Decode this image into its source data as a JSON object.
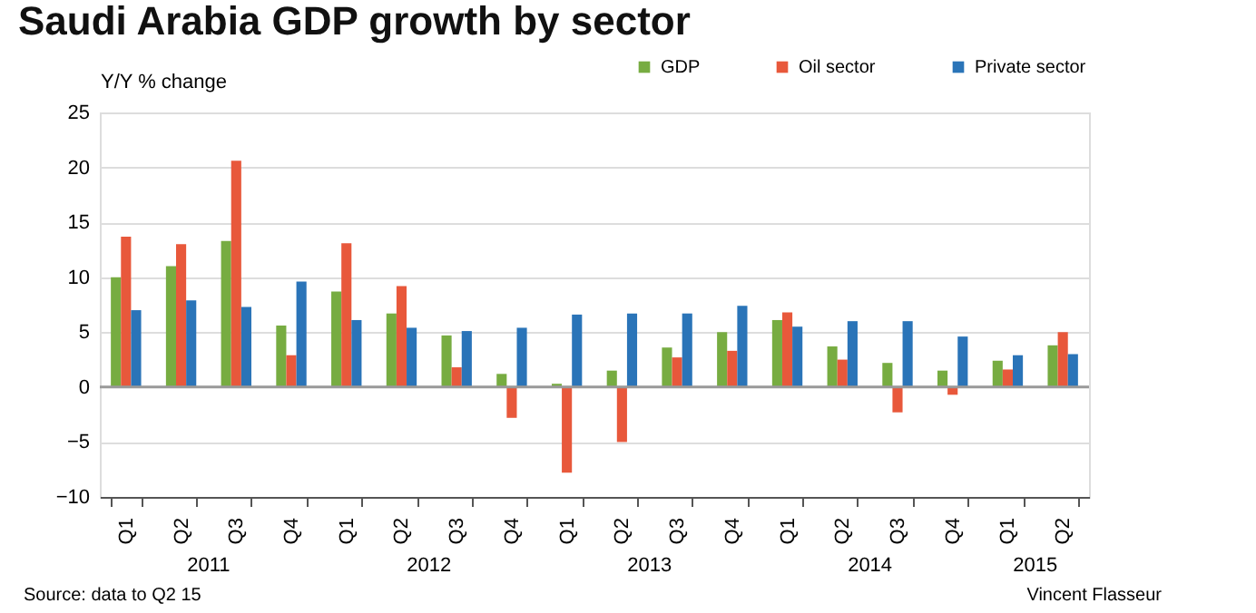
{
  "chart_data": {
    "type": "bar",
    "title": "Saudi Arabia GDP growth by sector",
    "ylabel": "Y/Y % change",
    "categories": [
      "Q1",
      "Q2",
      "Q3",
      "Q4",
      "Q1",
      "Q2",
      "Q3",
      "Q4",
      "Q1",
      "Q2",
      "Q3",
      "Q4",
      "Q1",
      "Q2",
      "Q3",
      "Q4",
      "Q1",
      "Q2"
    ],
    "series": [
      {
        "name": "GDP",
        "color": "#77ac41",
        "values": [
          10.0,
          11.0,
          13.3,
          5.6,
          8.7,
          6.7,
          4.7,
          1.2,
          0.3,
          1.5,
          3.6,
          5.0,
          6.1,
          3.7,
          2.2,
          1.5,
          2.4,
          3.8
        ]
      },
      {
        "name": "Oil sector",
        "color": "#e8583b",
        "values": [
          13.7,
          13.0,
          20.6,
          2.9,
          13.1,
          9.2,
          1.8,
          -2.8,
          -7.8,
          -5.0,
          2.7,
          3.3,
          6.8,
          2.5,
          -2.3,
          -0.7,
          1.6,
          5.0
        ]
      },
      {
        "name": "Private sector",
        "color": "#2a74b8",
        "values": [
          7.0,
          7.9,
          7.3,
          9.6,
          6.1,
          5.4,
          5.1,
          5.4,
          6.6,
          6.7,
          6.7,
          7.4,
          5.5,
          6.0,
          6.0,
          4.6,
          2.9,
          3.0
        ]
      }
    ],
    "ylim": [
      -10,
      25
    ],
    "yticks": [
      -10,
      -5,
      0,
      5,
      10,
      15,
      20,
      25
    ],
    "grid": "y",
    "legend": "top right",
    "ref_lines": [
      {
        "axis": "y",
        "value": 0,
        "color": "#999999"
      }
    ],
    "annotations": [
      "2011",
      "2012",
      "2013",
      "2014",
      "2015",
      "Source: data to Q2 15",
      "Vincent Flasseur"
    ]
  }
}
